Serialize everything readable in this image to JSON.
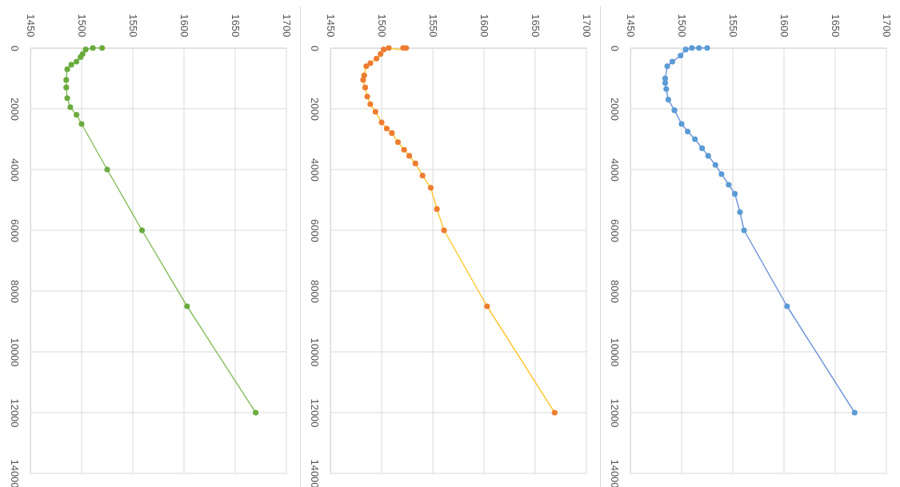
{
  "chart_data": [
    {
      "type": "line",
      "xlim": [
        1450,
        1700
      ],
      "xticks": [
        1450,
        1500,
        1550,
        1600,
        1650,
        1700
      ],
      "ylim": [
        14000,
        0
      ],
      "yticks": [
        0,
        2000,
        4000,
        6000,
        8000,
        10000,
        12000,
        14000
      ],
      "grid": true,
      "series": [
        {
          "marker": "none",
          "color": "#8cc063",
          "x": [
            1520,
            1511,
            1504,
            1501,
            1499,
            1495,
            1490,
            1486,
            1485,
            1485,
            1486,
            1489,
            1495,
            1500,
            1525,
            1559,
            1603,
            1670
          ],
          "values": [
            0,
            0,
            50,
            200,
            300,
            450,
            550,
            700,
            1050,
            1300,
            1650,
            1950,
            2200,
            2500,
            4000,
            6000,
            8500,
            12000
          ]
        },
        {
          "type": "scatter",
          "marker": "circle",
          "color": "#6aab3e",
          "x": [
            1520,
            1511,
            1504,
            1501,
            1499,
            1495,
            1490,
            1486,
            1485,
            1485,
            1486,
            1489,
            1495,
            1500,
            1525,
            1559,
            1603,
            1670
          ],
          "values": [
            0,
            0,
            50,
            200,
            300,
            450,
            550,
            700,
            1050,
            1300,
            1650,
            1950,
            2200,
            2500,
            4000,
            6000,
            8500,
            12000
          ]
        }
      ]
    },
    {
      "type": "line",
      "xlim": [
        1450,
        1700
      ],
      "xticks": [
        1450,
        1500,
        1550,
        1600,
        1650,
        1700
      ],
      "ylim": [
        14000,
        0
      ],
      "yticks": [
        0,
        2000,
        4000,
        6000,
        8000,
        10000,
        12000,
        14000
      ],
      "grid": true,
      "series": [
        {
          "marker": "none",
          "color": "#ffc833",
          "x": [
            1524,
            1521,
            1516,
            1507,
            1502,
            1499,
            1495,
            1489,
            1485,
            1483,
            1482,
            1484,
            1486,
            1489,
            1494,
            1500,
            1505,
            1510,
            1516,
            1522,
            1527,
            1533,
            1540,
            1548,
            1554,
            1561,
            1603,
            1669
          ],
          "values": [
            0,
            0,
            50,
            0,
            50,
            200,
            350,
            500,
            600,
            900,
            1050,
            1300,
            1600,
            1850,
            2100,
            2450,
            2650,
            2800,
            3100,
            3350,
            3550,
            3800,
            4200,
            4600,
            5300,
            6000,
            8500,
            12000
          ]
        },
        {
          "type": "scatter",
          "marker": "circle",
          "color": "#ed7d31",
          "x": [
            1524,
            1521,
            1507,
            1502,
            1499,
            1495,
            1489,
            1485,
            1483,
            1482,
            1484,
            1486,
            1489,
            1494,
            1500,
            1505,
            1510,
            1516,
            1522,
            1527,
            1533,
            1540,
            1548,
            1554,
            1561,
            1603,
            1669
          ],
          "values": [
            0,
            0,
            0,
            50,
            200,
            350,
            500,
            600,
            900,
            1050,
            1300,
            1600,
            1850,
            2100,
            2450,
            2650,
            2800,
            3100,
            3350,
            3550,
            3800,
            4200,
            4600,
            5300,
            6000,
            8500,
            12000
          ]
        }
      ]
    },
    {
      "type": "line",
      "xlim": [
        1450,
        1700
      ],
      "xticks": [
        1450,
        1500,
        1550,
        1600,
        1650,
        1700
      ],
      "ylim": [
        14000,
        0
      ],
      "yticks": [
        0,
        2000,
        4000,
        6000,
        8000,
        10000,
        12000,
        14000
      ],
      "grid": true,
      "series": [
        {
          "marker": "none",
          "color": "#6f95d8",
          "x": [
            1525,
            1517,
            1510,
            1504,
            1499,
            1491,
            1486,
            1484,
            1484,
            1485,
            1487,
            1493,
            1500,
            1506,
            1513,
            1520,
            1526,
            1533,
            1539,
            1546,
            1552,
            1557,
            1561,
            1603,
            1669
          ],
          "values": [
            0,
            0,
            0,
            50,
            250,
            450,
            600,
            1000,
            1150,
            1350,
            1700,
            2050,
            2500,
            2750,
            3000,
            3300,
            3550,
            3850,
            4150,
            4500,
            4800,
            5400,
            6000,
            8500,
            12000
          ]
        },
        {
          "type": "scatter",
          "marker": "circle",
          "color": "#5b9bd5",
          "x": [
            1525,
            1517,
            1510,
            1504,
            1499,
            1491,
            1486,
            1484,
            1484,
            1485,
            1487,
            1493,
            1500,
            1506,
            1513,
            1520,
            1526,
            1533,
            1539,
            1546,
            1552,
            1557,
            1561,
            1603,
            1669
          ],
          "values": [
            0,
            0,
            0,
            50,
            250,
            450,
            600,
            1000,
            1150,
            1350,
            1700,
            2050,
            2500,
            2750,
            3000,
            3300,
            3550,
            3850,
            4150,
            4500,
            4800,
            5400,
            6000,
            8500,
            12000
          ]
        }
      ]
    }
  ]
}
